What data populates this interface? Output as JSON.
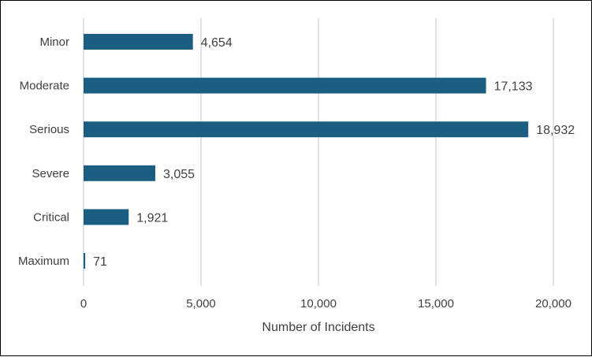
{
  "chart_data": {
    "type": "bar",
    "orientation": "horizontal",
    "title": "",
    "xlabel": "Number of Incidents",
    "ylabel": "",
    "categories": [
      "Minor",
      "Moderate",
      "Serious",
      "Severe",
      "Critical",
      "Maximum"
    ],
    "values": [
      4654,
      17133,
      18932,
      3055,
      1921,
      71
    ],
    "data_labels": [
      "4,654",
      "17,133",
      "18,932",
      "3,055",
      "1,921",
      "71"
    ],
    "xlim": [
      0,
      20000
    ],
    "x_ticks": [
      0,
      5000,
      10000,
      15000,
      20000
    ],
    "x_tick_labels": [
      "0",
      "5,000",
      "10,000",
      "15,000",
      "20,000"
    ],
    "grid": "vertical",
    "legend": "none",
    "bar_color": "#1B5E82",
    "grid_color": "#D9D9D9",
    "text_color": "#404040"
  }
}
